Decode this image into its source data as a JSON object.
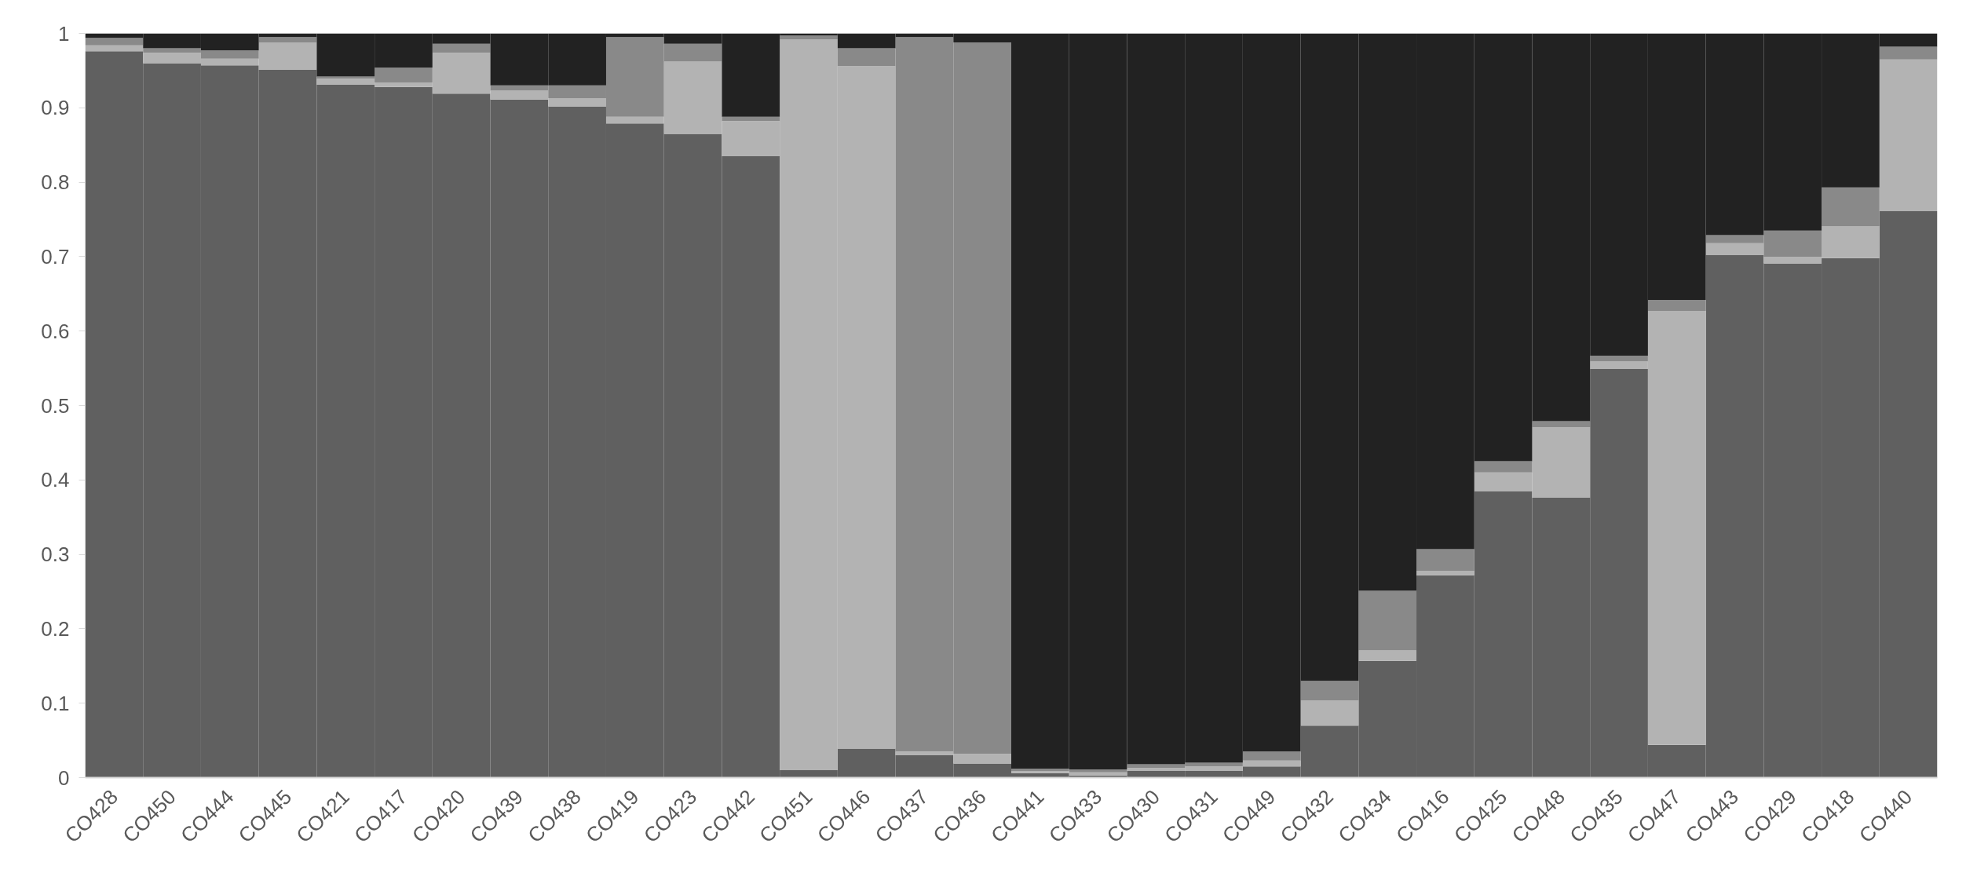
{
  "chart_data": {
    "type": "bar",
    "stacked": true,
    "categories": [
      "CO428",
      "CO450",
      "CO444",
      "CO445",
      "CO421",
      "CO417",
      "CO420",
      "CO439",
      "CO438",
      "CO419",
      "CO423",
      "CO442",
      "CO451",
      "CO446",
      "CO437",
      "CO436",
      "CO441",
      "CO433",
      "CO430",
      "CO431",
      "CO449",
      "CO432",
      "CO434",
      "CO416",
      "CO425",
      "CO448",
      "CO435",
      "CO447",
      "CO443",
      "CO429",
      "CO418",
      "CO440"
    ],
    "series": [
      {
        "color": "#606060",
        "values": [
          0.976,
          0.96,
          0.957,
          0.951,
          0.931,
          0.928,
          0.919,
          0.911,
          0.902,
          0.879,
          0.865,
          0.835,
          0.01,
          0.039,
          0.03,
          0.019,
          0.006,
          0.003,
          0.009,
          0.009,
          0.015,
          0.07,
          0.157,
          0.272,
          0.385,
          0.376,
          0.549,
          0.044,
          0.702,
          0.691,
          0.698,
          0.761
        ]
      },
      {
        "color": "#b3b3b3",
        "values": [
          0.008,
          0.014,
          0.009,
          0.037,
          0.008,
          0.006,
          0.055,
          0.012,
          0.011,
          0.009,
          0.097,
          0.047,
          0.982,
          0.917,
          0.005,
          0.013,
          0.003,
          0.004,
          0.004,
          0.006,
          0.008,
          0.034,
          0.014,
          0.006,
          0.025,
          0.095,
          0.01,
          0.583,
          0.016,
          0.009,
          0.043,
          0.204
        ]
      },
      {
        "color": "#898989",
        "values": [
          0.01,
          0.006,
          0.011,
          0.007,
          0.003,
          0.02,
          0.012,
          0.007,
          0.017,
          0.107,
          0.024,
          0.006,
          0.005,
          0.024,
          0.96,
          0.956,
          0.003,
          0.004,
          0.005,
          0.005,
          0.012,
          0.026,
          0.08,
          0.029,
          0.015,
          0.008,
          0.008,
          0.015,
          0.011,
          0.035,
          0.052,
          0.017
        ]
      },
      {
        "color": "#222222",
        "values": [
          0.006,
          0.02,
          0.023,
          0.005,
          0.058,
          0.046,
          0.014,
          0.07,
          0.07,
          0.005,
          0.014,
          0.112,
          0.003,
          0.02,
          0.005,
          0.012,
          0.988,
          0.989,
          0.982,
          0.98,
          0.965,
          0.87,
          0.749,
          0.693,
          0.575,
          0.521,
          0.433,
          0.358,
          0.271,
          0.265,
          0.207,
          0.018
        ]
      }
    ],
    "ylim": [
      0,
      1
    ],
    "yticks": [
      0,
      0.1,
      0.2,
      0.3,
      0.4,
      0.5,
      0.6,
      0.7,
      0.8,
      0.9,
      1
    ]
  }
}
